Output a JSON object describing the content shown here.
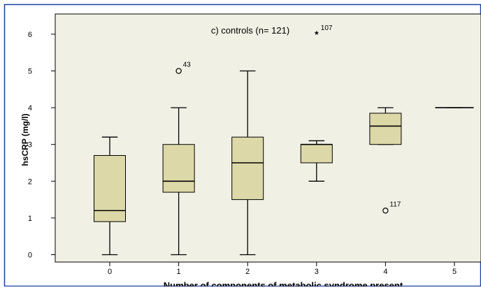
{
  "chart_data": {
    "type": "boxplot",
    "title": "c) controls (n= 121)",
    "xlabel": "Number of components of metabolic syndrome present",
    "ylabel": "hsCRP (mg/l)",
    "ylim": [
      -0.2,
      6.55
    ],
    "y_ticks": [
      "0",
      "1",
      "2",
      "3",
      "4",
      "5",
      "6"
    ],
    "categories": [
      "0",
      "1",
      "2",
      "3",
      "4",
      "5"
    ],
    "boxes": [
      {
        "category": "0",
        "whisker_low": 0.0,
        "q1": 0.9,
        "median": 1.2,
        "q3": 2.7,
        "whisker_high": 3.2
      },
      {
        "category": "1",
        "whisker_low": 0.0,
        "q1": 1.7,
        "median": 2.0,
        "q3": 3.0,
        "whisker_high": 4.0
      },
      {
        "category": "2",
        "whisker_low": 0.0,
        "q1": 1.5,
        "median": 2.5,
        "q3": 3.2,
        "whisker_high": 5.0
      },
      {
        "category": "3",
        "whisker_low": 2.0,
        "q1": 2.5,
        "median": 3.0,
        "q3": 3.0,
        "whisker_high": 3.1
      },
      {
        "category": "4",
        "whisker_low": 3.0,
        "q1": 3.0,
        "median": 3.5,
        "q3": 3.85,
        "whisker_high": 4.0
      },
      {
        "category": "5",
        "whisker_low": 4.0,
        "q1": 4.0,
        "median": 4.0,
        "q3": 4.0,
        "whisker_high": 4.0
      }
    ],
    "outliers": [
      {
        "category": "1",
        "value": 5.0,
        "marker": "circle",
        "label": "43"
      },
      {
        "category": "3",
        "value": 6.0,
        "marker": "star",
        "label": "107"
      },
      {
        "category": "4",
        "value": 1.2,
        "marker": "circle",
        "label": "117"
      }
    ],
    "grid": false,
    "colors": {
      "box_fill": "#ddd8a8",
      "plot_bg": "#f0f0e4",
      "frame": "#1f3fa0"
    }
  }
}
